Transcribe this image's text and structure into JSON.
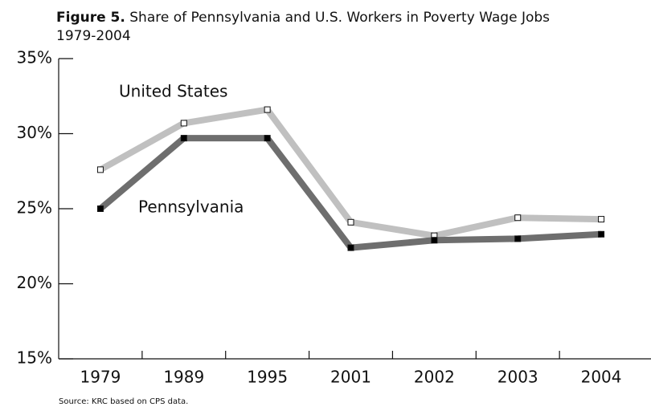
{
  "chart_data": {
    "type": "line",
    "title_label": "Figure 5.",
    "title": "Share of Pennsylvania and U.S. Workers in Poverty Wage Jobs",
    "subtitle": "1979-2004",
    "source": "Source: KRC based on CPS data.",
    "categories": [
      "1979",
      "1989",
      "1995",
      "2001",
      "2002",
      "2003",
      "2004"
    ],
    "series": [
      {
        "name": "United States",
        "color": "#c0c0c0",
        "marker_fill": "#ffffff",
        "values": [
          27.6,
          30.7,
          31.6,
          24.1,
          23.2,
          24.4,
          24.3
        ]
      },
      {
        "name": "Pennsylvania",
        "color": "#6e6e6e",
        "marker_fill": "#000000",
        "values": [
          25.0,
          29.7,
          29.7,
          22.4,
          22.9,
          23.0,
          23.3
        ]
      }
    ],
    "ylim": [
      15,
      35
    ],
    "yticks": [
      {
        "value": 15,
        "label": "15%"
      },
      {
        "value": 20,
        "label": "20%"
      },
      {
        "value": 25,
        "label": "25%"
      },
      {
        "value": 30,
        "label": "30%"
      },
      {
        "value": 35,
        "label": "35%"
      }
    ],
    "grid": false
  }
}
